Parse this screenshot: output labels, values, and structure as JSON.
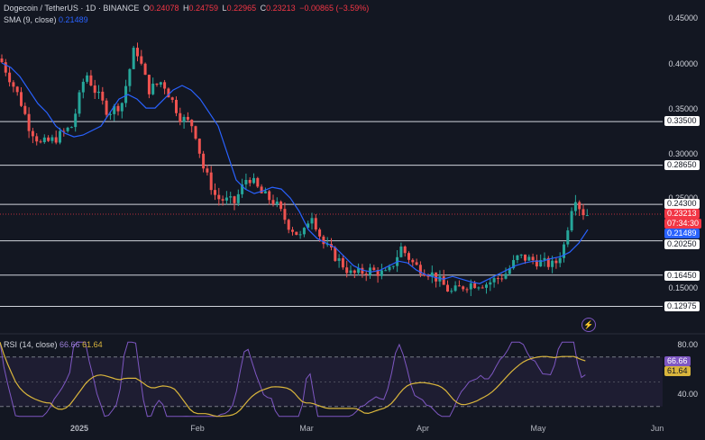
{
  "header": {
    "symbol": "Dogecoin / TetherUS · 1D · BINANCE",
    "o_label": "O",
    "o": "0.24078",
    "h_label": "H",
    "h": "0.24759",
    "l_label": "L",
    "l": "0.22965",
    "c_label": "C",
    "c": "0.23213",
    "change": "−0.00865 (−3.59%)",
    "sma_label": "SMA (9, close)",
    "sma_value": "0.21489",
    "rsi_label": "RSI (14, close)",
    "rsi_value": "66.66",
    "rsi_ma_value": "61.64"
  },
  "colors": {
    "background": "#131722",
    "up": "#26a69a",
    "down": "#ef5350",
    "sma": "#2962ff",
    "rsi": "#7e57c2",
    "rsi_ma": "#d9b53c",
    "hline": "#d1d4dc"
  },
  "chart_data": [
    {
      "type": "candlestick",
      "title": "Dogecoin / TetherUS · 1D · BINANCE",
      "y_axis_ticks": [
        "0.45000",
        "0.40000",
        "0.35000",
        "0.30000",
        "0.25000",
        "0.15000"
      ],
      "y_range": [
        0.115,
        0.465
      ],
      "x_axis_ticks": [
        "2025",
        "Feb",
        "Mar",
        "Apr",
        "May",
        "Jun"
      ],
      "horizontal_levels": [
        "0.33500",
        "0.28650",
        "0.24300",
        "0.20250",
        "0.16450",
        "0.12975"
      ],
      "price_tags": {
        "last_price": "0.23213",
        "countdown": "07:34:30",
        "sma": "0.21489"
      },
      "sma_close": [
        0.4,
        0.395,
        0.385,
        0.37,
        0.355,
        0.345,
        0.33,
        0.322,
        0.318,
        0.32,
        0.325,
        0.33,
        0.345,
        0.36,
        0.365,
        0.36,
        0.35,
        0.35,
        0.36,
        0.37,
        0.375,
        0.37,
        0.36,
        0.345,
        0.33,
        0.3,
        0.27,
        0.26,
        0.255,
        0.258,
        0.262,
        0.26,
        0.25,
        0.235,
        0.215,
        0.205,
        0.2,
        0.195,
        0.185,
        0.175,
        0.17,
        0.168,
        0.17,
        0.175,
        0.18,
        0.178,
        0.17,
        0.165,
        0.162,
        0.16,
        0.163,
        0.16,
        0.157,
        0.155,
        0.16,
        0.165,
        0.17,
        0.175,
        0.178,
        0.18,
        0.18,
        0.183,
        0.185,
        0.19,
        0.2,
        0.215
      ],
      "rsi": {
        "levels": [
          "80.00",
          "40.00"
        ],
        "band": [
          70,
          30
        ],
        "value": "66.66",
        "ma": "61.64"
      }
    }
  ]
}
